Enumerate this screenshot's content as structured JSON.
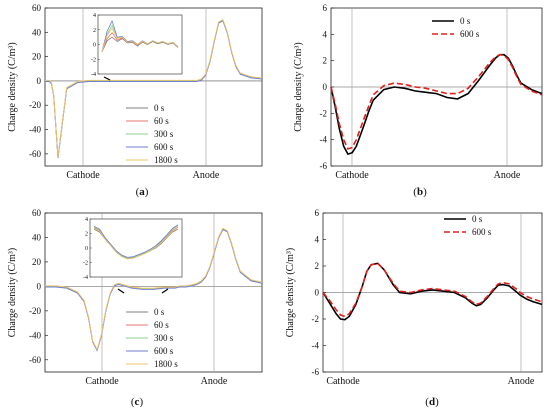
{
  "chart_data": [
    {
      "id": "a",
      "type": "line",
      "panel_label": "a",
      "ylabel": "Charge density (C/m³)",
      "ylim": [
        -70,
        60
      ],
      "yticks": [
        60,
        40,
        20,
        0,
        -20,
        -40,
        -60
      ],
      "x_markers": [
        "Cathode",
        "Anode"
      ],
      "series": [
        {
          "name": "0 s",
          "color": "#7f7f7f"
        },
        {
          "name": "60 s",
          "color": "#e8766e"
        },
        {
          "name": "300 s",
          "color": "#8fd18a"
        },
        {
          "name": "600 s",
          "color": "#6b7fd6"
        },
        {
          "name": "1800 s",
          "color": "#f2c46a"
        }
      ],
      "x": [
        0,
        2,
        3,
        4,
        5,
        6,
        8,
        10,
        15,
        20,
        25,
        28,
        30,
        31,
        32,
        33,
        35,
        38,
        40,
        45,
        50,
        55,
        60,
        65,
        68,
        70,
        72,
        74,
        76,
        78,
        80,
        82,
        84,
        86,
        88,
        90,
        95,
        100
      ],
      "values": [
        0,
        0,
        -2,
        -12,
        -38,
        -63,
        -34,
        -6,
        -1,
        0,
        0,
        0,
        0,
        0,
        0,
        0,
        0,
        0,
        0,
        0,
        0,
        0,
        0,
        0,
        0,
        0,
        1,
        5,
        16,
        33,
        48,
        50,
        40,
        24,
        12,
        6,
        3,
        2
      ],
      "inset": {
        "ylim": [
          -4,
          4
        ],
        "yticks": [
          4,
          2,
          0,
          -2,
          -4
        ],
        "series": [
          {
            "name": "0 s",
            "y": [
              -1,
              0.5,
              1.0,
              0.4,
              0.8,
              0.2,
              0.3,
              -0.2,
              0.3,
              0.0,
              0.4,
              0.1,
              0.3,
              0.0,
              0.2,
              -0.4
            ]
          },
          {
            "name": "60 s",
            "y": [
              -1,
              0.8,
              1.6,
              0.6,
              0.9,
              0.3,
              0.4,
              -0.1,
              0.4,
              0.1,
              0.5,
              0.2,
              0.4,
              0.1,
              0.3,
              -0.3
            ]
          },
          {
            "name": "300 s",
            "y": [
              -1,
              1.4,
              2.6,
              0.9,
              1.0,
              0.4,
              0.5,
              0.0,
              0.5,
              0.1,
              0.5,
              0.2,
              0.4,
              0.1,
              0.3,
              -0.3
            ]
          },
          {
            "name": "600 s",
            "y": [
              -1,
              1.8,
              3.2,
              1.0,
              1.1,
              0.4,
              0.5,
              0.0,
              0.5,
              0.1,
              0.5,
              0.2,
              0.4,
              0.1,
              0.3,
              -0.3
            ]
          },
          {
            "name": "1800 s",
            "y": [
              -1,
              1.2,
              2.2,
              0.8,
              1.0,
              0.3,
              0.4,
              0.0,
              0.4,
              0.1,
              0.5,
              0.2,
              0.4,
              0.1,
              0.3,
              -0.3
            ]
          }
        ]
      }
    },
    {
      "id": "b",
      "type": "line",
      "panel_label": "b",
      "ylabel": "Charge density (C/m³)",
      "ylim": [
        -6,
        6
      ],
      "yticks": [
        6,
        4,
        2,
        0,
        -2,
        -4,
        -6
      ],
      "x_markers": [
        "Cathode",
        "Anode"
      ],
      "series": [
        {
          "name": "0 s",
          "color": "#000000",
          "dash": "",
          "x": [
            0,
            2,
            4,
            6,
            8,
            10,
            12,
            15,
            18,
            20,
            25,
            30,
            35,
            40,
            45,
            50,
            55,
            60,
            65,
            70,
            75,
            78,
            80,
            82,
            84,
            86,
            88,
            90,
            95,
            100
          ],
          "y": [
            0,
            -1.5,
            -3.2,
            -4.5,
            -5.1,
            -5.0,
            -4.5,
            -3.2,
            -1.8,
            -1.0,
            -0.2,
            0.0,
            -0.1,
            -0.3,
            -0.4,
            -0.5,
            -0.8,
            -0.9,
            -0.5,
            0.5,
            1.6,
            2.2,
            2.45,
            2.45,
            2.2,
            1.6,
            0.9,
            0.3,
            -0.2,
            -0.5
          ]
        },
        {
          "name": "600 s",
          "color": "#e0201b",
          "dash": "6,3",
          "x": [
            0,
            2,
            4,
            6,
            8,
            10,
            12,
            15,
            18,
            20,
            25,
            30,
            35,
            40,
            45,
            50,
            55,
            60,
            65,
            70,
            75,
            78,
            80,
            82,
            84,
            86,
            88,
            90,
            95,
            100
          ],
          "y": [
            0,
            -1.3,
            -2.8,
            -4.0,
            -4.7,
            -4.6,
            -4.0,
            -2.7,
            -1.4,
            -0.6,
            0.1,
            0.3,
            0.2,
            0.0,
            -0.1,
            -0.3,
            -0.5,
            -0.5,
            -0.1,
            0.8,
            1.8,
            2.3,
            2.45,
            2.4,
            2.1,
            1.5,
            0.8,
            0.2,
            -0.3,
            -0.6
          ]
        }
      ]
    },
    {
      "id": "c",
      "type": "line",
      "panel_label": "c",
      "ylabel": "Charge density (C/m³)",
      "ylim": [
        -70,
        60
      ],
      "yticks": [
        60,
        40,
        20,
        0,
        -20,
        -40,
        -60
      ],
      "x_markers": [
        "Cathode",
        "Anode"
      ],
      "series": [
        {
          "name": "0 s",
          "color": "#7f7f7f"
        },
        {
          "name": "60 s",
          "color": "#e8766e"
        },
        {
          "name": "300 s",
          "color": "#8fd18a"
        },
        {
          "name": "600 s",
          "color": "#6b7fd6"
        },
        {
          "name": "1800 s",
          "color": "#f2c46a"
        }
      ],
      "x": [
        0,
        5,
        10,
        15,
        18,
        20,
        22,
        24,
        26,
        28,
        30,
        32,
        34,
        36,
        38,
        40,
        45,
        50,
        55,
        60,
        62,
        65,
        68,
        70,
        72,
        74,
        76,
        78,
        80,
        82,
        84,
        86,
        88,
        90,
        95,
        100
      ],
      "values": [
        0,
        0,
        -1,
        -5,
        -12,
        -25,
        -45,
        -52,
        -40,
        -20,
        -6,
        1,
        2,
        1,
        0,
        -1,
        -2,
        -2,
        -1,
        -1,
        0,
        0,
        1,
        2,
        4,
        8,
        16,
        28,
        40,
        47,
        45,
        35,
        22,
        12,
        5,
        3
      ],
      "inset": {
        "ylim": [
          -4,
          4
        ],
        "yticks": [
          4,
          2,
          0,
          -2,
          -4
        ],
        "series": [
          {
            "name": "0 s",
            "y": [
              2.6,
              2.2,
              1.2,
              0.3,
              -0.6,
              -1.2,
              -1.5,
              -1.4,
              -1.1,
              -0.8,
              -0.4,
              0.0,
              0.6,
              1.4,
              2.2,
              2.6
            ]
          },
          {
            "name": "60 s",
            "y": [
              2.8,
              2.4,
              1.3,
              0.4,
              -0.5,
              -1.1,
              -1.4,
              -1.3,
              -1.0,
              -0.7,
              -0.3,
              0.2,
              0.8,
              1.6,
              2.4,
              2.9
            ]
          },
          {
            "name": "300 s",
            "y": [
              2.9,
              2.5,
              1.4,
              0.4,
              -0.5,
              -1.1,
              -1.4,
              -1.3,
              -1.0,
              -0.7,
              -0.3,
              0.2,
              0.9,
              1.7,
              2.6,
              3.1
            ]
          },
          {
            "name": "600 s",
            "y": [
              3.0,
              2.6,
              1.4,
              0.5,
              -0.4,
              -1.0,
              -1.3,
              -1.2,
              -0.9,
              -0.6,
              -0.2,
              0.3,
              1.0,
              1.8,
              2.7,
              3.2
            ]
          },
          {
            "name": "1800 s",
            "y": [
              2.7,
              2.3,
              1.2,
              0.3,
              -0.6,
              -1.2,
              -1.5,
              -1.4,
              -1.1,
              -0.8,
              -0.4,
              0.1,
              0.7,
              1.5,
              2.3,
              2.8
            ]
          }
        ]
      }
    },
    {
      "id": "d",
      "type": "line",
      "panel_label": "d",
      "ylabel": "Charge density (C/m³)",
      "ylim": [
        -6,
        6
      ],
      "yticks": [
        6,
        4,
        2,
        0,
        -2,
        -4,
        -6
      ],
      "x_markers": [
        "Cathode",
        "Anode"
      ],
      "series": [
        {
          "name": "0 s",
          "color": "#000000",
          "dash": "",
          "x": [
            0,
            3,
            6,
            8,
            10,
            12,
            15,
            18,
            20,
            22,
            25,
            28,
            32,
            35,
            40,
            45,
            50,
            55,
            60,
            65,
            68,
            70,
            72,
            75,
            78,
            80,
            82,
            85,
            88,
            90,
            93,
            96,
            100
          ],
          "y": [
            0,
            -0.8,
            -1.6,
            -2.0,
            -2.05,
            -1.8,
            -0.9,
            0.5,
            1.6,
            2.1,
            2.2,
            1.7,
            0.6,
            0.0,
            -0.1,
            0.1,
            0.2,
            0.1,
            0.0,
            -0.4,
            -0.8,
            -1.0,
            -0.9,
            -0.4,
            0.2,
            0.55,
            0.6,
            0.5,
            0.1,
            -0.2,
            -0.5,
            -0.7,
            -0.9
          ]
        },
        {
          "name": "600 s",
          "color": "#e0201b",
          "dash": "6,3",
          "x": [
            0,
            3,
            6,
            8,
            10,
            12,
            15,
            18,
            20,
            22,
            25,
            28,
            32,
            35,
            40,
            45,
            50,
            55,
            60,
            65,
            68,
            70,
            72,
            75,
            78,
            80,
            82,
            85,
            88,
            90,
            93,
            96,
            100
          ],
          "y": [
            0,
            -0.6,
            -1.3,
            -1.7,
            -1.8,
            -1.6,
            -0.8,
            0.5,
            1.6,
            2.1,
            2.2,
            1.7,
            0.7,
            0.1,
            0.0,
            0.2,
            0.3,
            0.2,
            0.1,
            -0.3,
            -0.7,
            -0.9,
            -0.8,
            -0.3,
            0.3,
            0.65,
            0.75,
            0.65,
            0.3,
            0.0,
            -0.3,
            -0.5,
            -0.7
          ]
        }
      ]
    }
  ]
}
